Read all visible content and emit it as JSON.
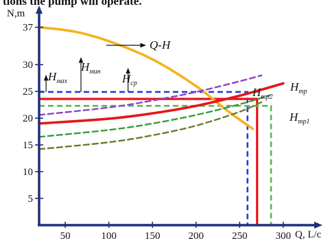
{
  "top_caption": "tions the pump will operate.",
  "chart_data": {
    "type": "line",
    "ylabel": "N,m",
    "xlabel": "Q,  L/c",
    "xlim": [
      20,
      330
    ],
    "ylim": [
      0,
      38.5
    ],
    "x_ticks": [
      50,
      100,
      150,
      200,
      250,
      300
    ],
    "y_ticks": [
      5,
      10,
      15,
      20,
      25,
      30,
      37
    ],
    "series": [
      {
        "name": "Q-H",
        "color": "#f5b21e",
        "style": "solid",
        "x": [
          20,
          60,
          100,
          150,
          200,
          235,
          265
        ],
        "y": [
          37,
          36.2,
          34.4,
          31.0,
          26.0,
          21.5,
          18.0
        ]
      },
      {
        "name": "H_тр",
        "color": "#e8141c",
        "style": "solid",
        "x": [
          20,
          100,
          150,
          200,
          250,
          300
        ],
        "y": [
          19,
          19.9,
          20.9,
          22.3,
          24.2,
          26.5
        ]
      },
      {
        "name": "H_тр1",
        "color": "#3a9a3a",
        "style": "dashed",
        "x": [
          20,
          100,
          150,
          200,
          250,
          285
        ],
        "y": [
          16.5,
          17.8,
          19.0,
          20.6,
          22.6,
          24.3
        ]
      },
      {
        "name": "H_тр2",
        "color": "#8c44c4",
        "style": "dashed",
        "x": [
          20,
          100,
          150,
          200,
          250,
          275
        ],
        "y": [
          20.6,
          22.0,
          23.3,
          24.9,
          26.9,
          28.0
        ]
      },
      {
        "name": "",
        "color": "#6b7a2e",
        "style": "dashed",
        "x": [
          20,
          100,
          150,
          200,
          250,
          275
        ],
        "y": [
          14.2,
          15.5,
          16.8,
          18.6,
          21.2,
          23.0
        ]
      }
    ],
    "reference_lines": [
      {
        "color": "#1f3fd8",
        "style": "dashed",
        "y": 24.9,
        "x": 259
      },
      {
        "color": "#e8141c",
        "style": "solid",
        "y": 23.6,
        "x": 270
      },
      {
        "color": "#5ab54f",
        "style": "dashed",
        "y": 22.3,
        "x": 286
      }
    ],
    "level_markers": [
      {
        "label_main": "H",
        "label_sub": "мах",
        "x": 28
      },
      {
        "label_main": "H",
        "label_sub": "мин",
        "x": 68
      },
      {
        "label_main": "H",
        "label_sub": "ср",
        "x": 122
      }
    ],
    "series_labels": [
      {
        "main": "Q-H"
      },
      {
        "main": "H",
        "sub": "тр2"
      },
      {
        "main": "H",
        "sub": "тр"
      },
      {
        "main": "H",
        "sub": "тр1"
      }
    ]
  }
}
